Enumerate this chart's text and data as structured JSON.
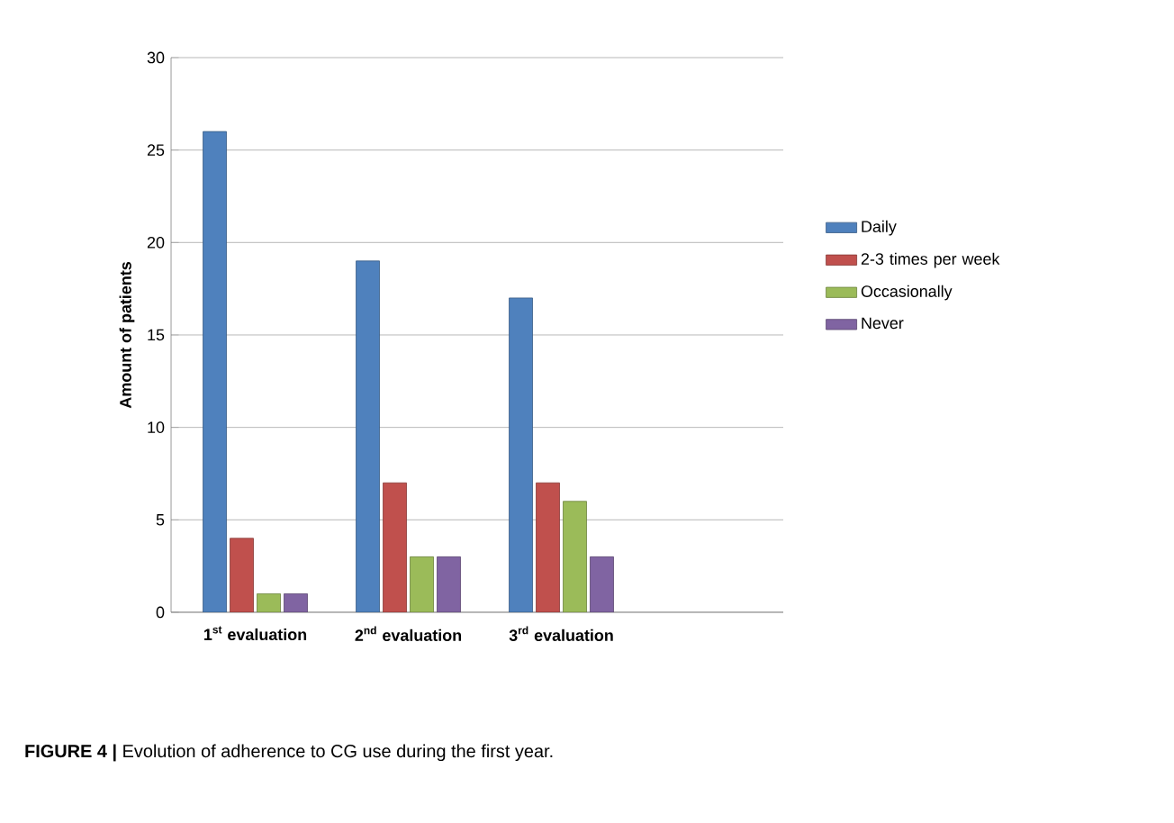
{
  "chart_data": {
    "type": "bar",
    "ylabel": "Amount of patients",
    "categories": [
      "1$^{st}$ evaluation",
      "2$^{nd}$ evaluation",
      "3$^{rd}$ evaluation"
    ],
    "series": [
      {
        "name": "Daily",
        "color": "#4f81bd",
        "values": [
          26,
          19,
          17
        ]
      },
      {
        "name": "2-3 times per week",
        "color": "#c0504d",
        "values": [
          4,
          7,
          7
        ]
      },
      {
        "name": "Occasionally",
        "color": "#9bbb59",
        "values": [
          1,
          3,
          6
        ]
      },
      {
        "name": "Never",
        "color": "#8064a2",
        "values": [
          1,
          3,
          3
        ]
      }
    ],
    "ylim": [
      0,
      30
    ],
    "yticks": [
      0,
      5,
      10,
      15,
      20,
      25,
      30
    ],
    "grid": "y",
    "legend": "right",
    "annotations": [
      "**FIGURE 4 |** Evolution of adherence to CG use during the first year."
    ]
  }
}
